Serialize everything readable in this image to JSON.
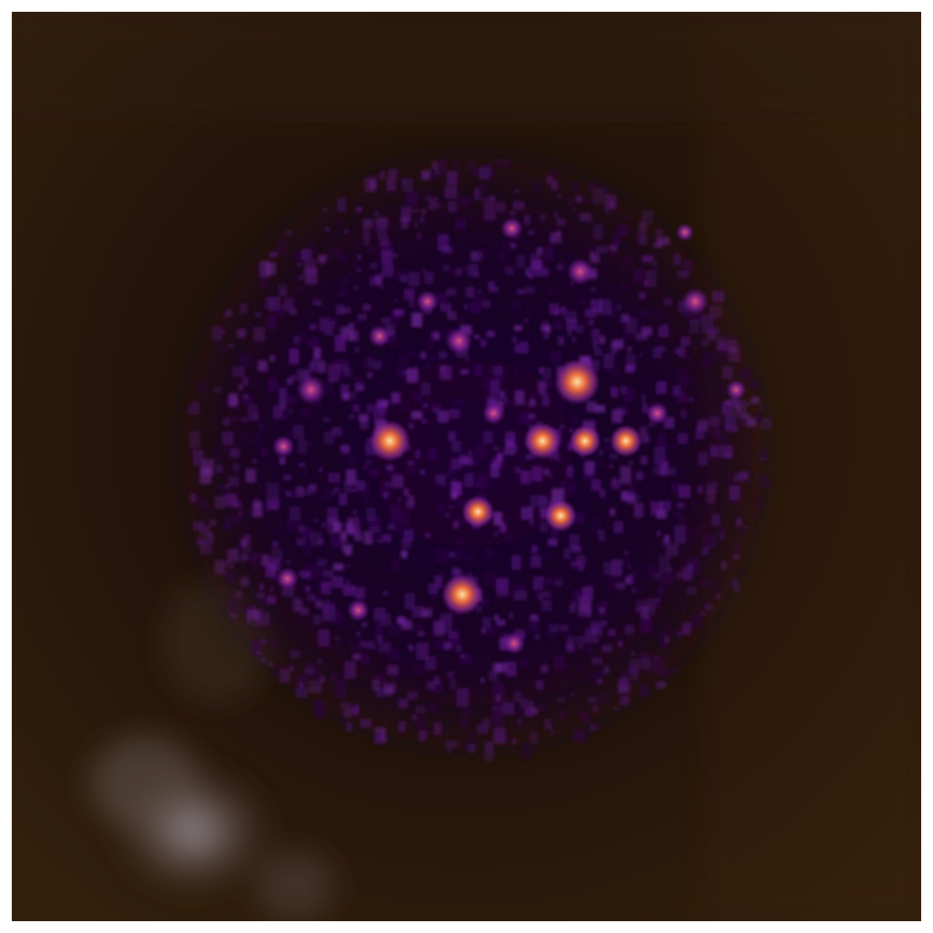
{
  "image": {
    "kind": "photograph-with-heatmap-overlay",
    "colors": {
      "page_background": "#ffffff",
      "photo_background": "#2a170a",
      "photo_dark": "#1a0d06",
      "photo_bright_blob": "#9a8f98",
      "heatmap_low": "#1a0426",
      "heatmap_mid": "#6a1a9a",
      "heatmap_high": "#e0663a",
      "heatmap_peak": "#fcd08a"
    }
  }
}
